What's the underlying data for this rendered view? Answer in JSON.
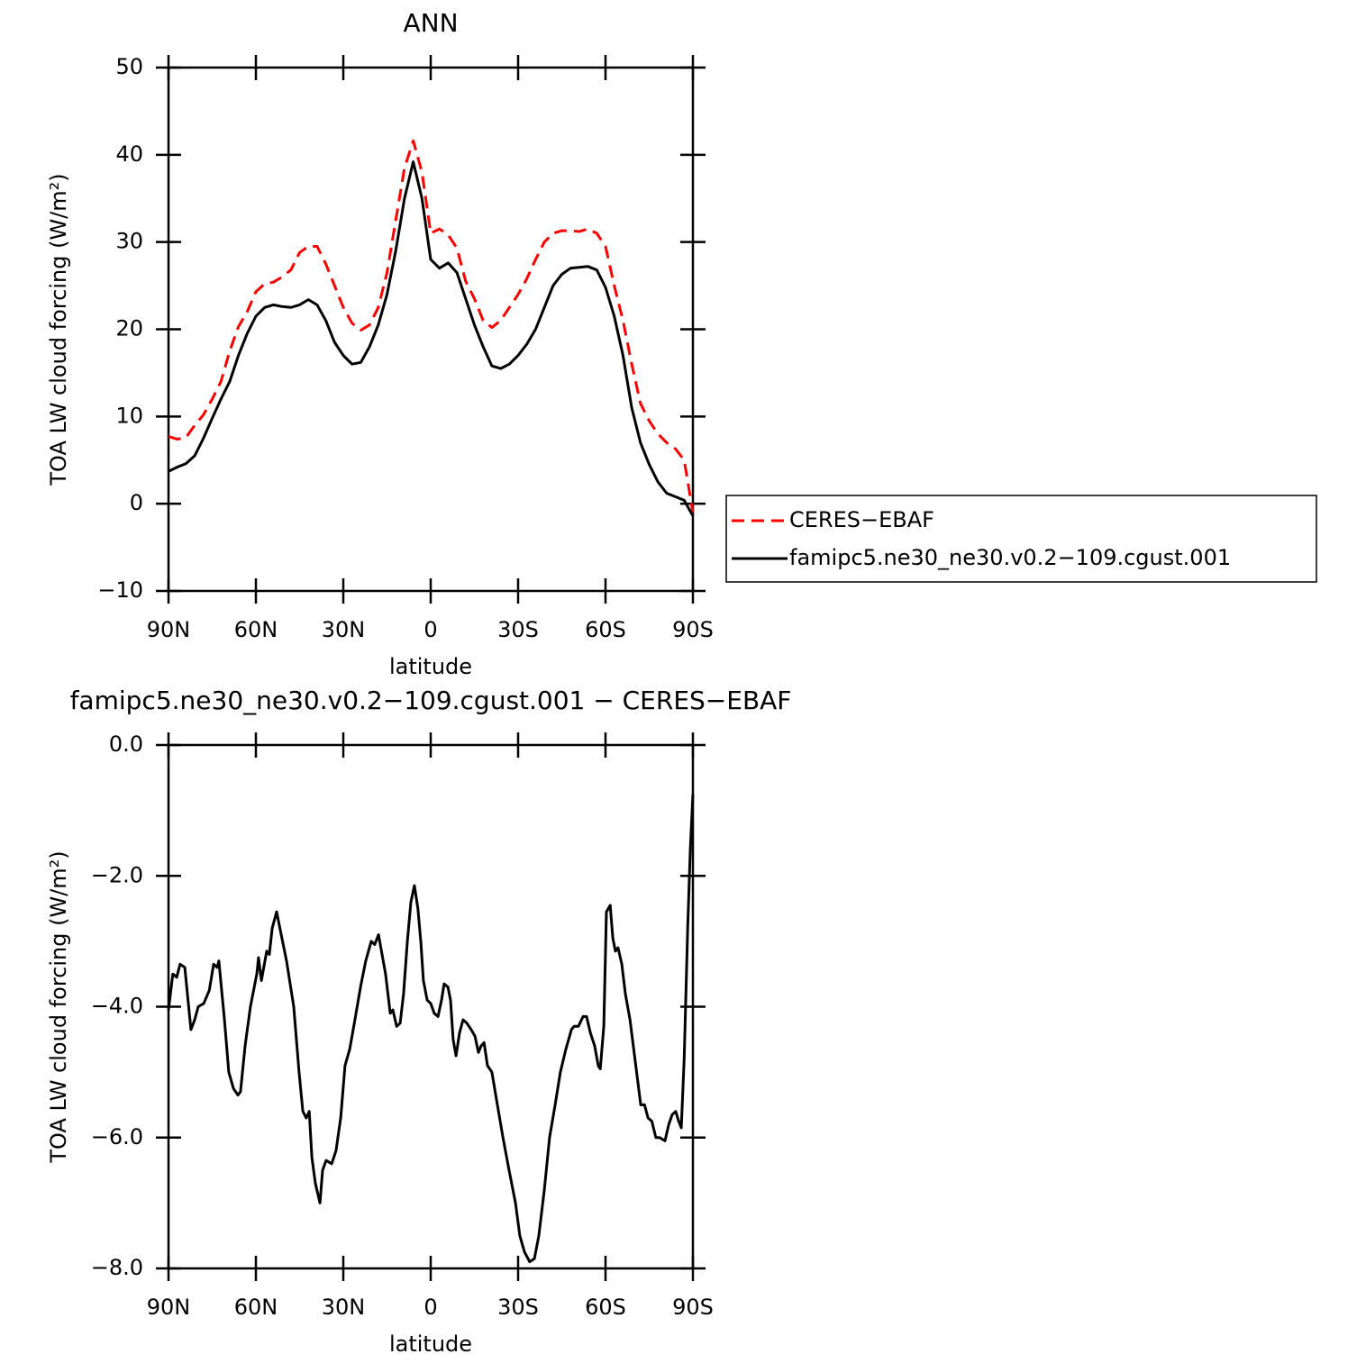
{
  "chart_data": [
    {
      "type": "line",
      "title": "ANN",
      "xlabel": "latitude",
      "ylabel": "TOA LW cloud forcing (W/m²)",
      "x": [
        90,
        87,
        84,
        81,
        78,
        75,
        72,
        69,
        66,
        63,
        60,
        57,
        54,
        51,
        48,
        45,
        42,
        39,
        36,
        33,
        30,
        27,
        24,
        21,
        18,
        15,
        12,
        9,
        6,
        3,
        0,
        -3,
        -6,
        -9,
        -12,
        -15,
        -18,
        -21,
        -24,
        -27,
        -30,
        -33,
        -36,
        -39,
        -42,
        -45,
        -48,
        -51,
        -54,
        -57,
        -60,
        -63,
        -66,
        -69,
        -72,
        -75,
        -78,
        -81,
        -84,
        -87,
        -90
      ],
      "series": [
        {
          "name": "CERES−EBAF",
          "color": "#ff0000",
          "dash": "dashed",
          "values": [
            7.7,
            7.4,
            7.6,
            9.0,
            10.2,
            12.0,
            14.0,
            17.5,
            20.3,
            22.0,
            24.3,
            25.2,
            25.4,
            26.0,
            26.8,
            28.8,
            29.5,
            29.5,
            27.5,
            25.0,
            22.5,
            20.7,
            19.9,
            20.5,
            22.5,
            26.5,
            32.5,
            38.5,
            41.6,
            38.0,
            31.0,
            31.5,
            30.8,
            29.3,
            25.5,
            23.5,
            21.0,
            20.2,
            21.0,
            22.5,
            24.0,
            25.8,
            28.0,
            30.0,
            31.0,
            31.3,
            31.3,
            31.2,
            31.5,
            31.0,
            29.5,
            25.0,
            21.0,
            16.0,
            11.5,
            9.5,
            8.0,
            7.0,
            6.3,
            5.0,
            -1.0
          ]
        },
        {
          "name": "famipc5.ne30_ne30.v0.2−109.cgust.001",
          "color": "#000000",
          "dash": "solid",
          "values": [
            3.7,
            4.2,
            4.6,
            5.5,
            7.5,
            9.8,
            12.0,
            14.0,
            17.0,
            19.5,
            21.5,
            22.5,
            22.8,
            22.6,
            22.5,
            22.8,
            23.4,
            22.8,
            21.0,
            18.5,
            17.0,
            16.0,
            16.2,
            18.0,
            20.5,
            24.0,
            29.0,
            35.0,
            39.2,
            35.0,
            28.0,
            27.0,
            27.6,
            26.5,
            23.5,
            20.5,
            18.0,
            15.8,
            15.5,
            16.0,
            17.0,
            18.3,
            20.0,
            22.5,
            25.0,
            26.3,
            27.0,
            27.1,
            27.2,
            26.8,
            24.8,
            21.5,
            17.0,
            11.0,
            7.0,
            4.5,
            2.5,
            1.2,
            0.8,
            0.4,
            -1.4
          ]
        }
      ],
      "xlim": [
        90,
        -90
      ],
      "xticks": [
        {
          "value": 90,
          "label": "90N"
        },
        {
          "value": 60,
          "label": "60N"
        },
        {
          "value": 30,
          "label": "30N"
        },
        0,
        {
          "value": -30,
          "label": "30S"
        },
        {
          "value": -60,
          "label": "60S"
        },
        {
          "value": -90,
          "label": "90S"
        }
      ],
      "ylim": [
        -10,
        50
      ],
      "yticks": [
        {
          "value": -10,
          "label": "−10"
        },
        0,
        10,
        20,
        30,
        40,
        50
      ],
      "legend": "right"
    },
    {
      "type": "line",
      "title": "famipc5.ne30_ne30.v0.2−109.cgust.001 − CERES−EBAF",
      "xlabel": "latitude",
      "ylabel": "TOA LW cloud forcing (W/m²)",
      "x": [
        90,
        88.5,
        87.2,
        86,
        84.4,
        82.3,
        81,
        79.8,
        77.9,
        76,
        74.5,
        73.3,
        72.7,
        70.8,
        69.3,
        67.7,
        66.2,
        65.3,
        63.7,
        61.9,
        59.7,
        59.1,
        58.1,
        56.3,
        55.4,
        54.4,
        52.9,
        51.3,
        49.5,
        47,
        45.2,
        43.9,
        42.7,
        41.7,
        40.8,
        39.6,
        38,
        37.1,
        35.9,
        34,
        32.5,
        30.9,
        29.4,
        27.8,
        26,
        24.1,
        22.3,
        20.4,
        19.2,
        17.9,
        16.7,
        15.5,
        13.9,
        13,
        11.7,
        10.5,
        9.3,
        8,
        6.8,
        5.6,
        4.4,
        3.4,
        2.5,
        1.2,
        0,
        -1.2,
        -2.5,
        -3.7,
        -4.6,
        -5.9,
        -6.8,
        -7.7,
        -8.7,
        -9.9,
        -11.1,
        -12.4,
        -13.9,
        -15.2,
        -16.4,
        -17.3,
        -18.3,
        -19.5,
        -21,
        -22.9,
        -24.8,
        -26.9,
        -29.1,
        -30.6,
        -32.2,
        -34,
        -35.6,
        -37.1,
        -39,
        -40.8,
        -42.7,
        -44.5,
        -46.4,
        -48.3,
        -49.2,
        -50.7,
        -52.3,
        -53.5,
        -54.8,
        -56.3,
        -57.5,
        -58.2,
        -59.4,
        -60.3,
        -61.6,
        -62.5,
        -63.4,
        -64.3,
        -65.6,
        -66.8,
        -68.4,
        -70.4,
        -72.1,
        -73.4,
        -74.6,
        -75.9,
        -77.3,
        -78.6,
        -80.4,
        -81.7,
        -82.9,
        -84.1,
        -85.1,
        -86,
        -87,
        -88.2,
        -89.1,
        -90
      ],
      "color": "#000000",
      "values": [
        -4.05,
        -3.5,
        -3.55,
        -3.35,
        -3.4,
        -4.35,
        -4.2,
        -4.0,
        -3.95,
        -3.75,
        -3.35,
        -3.4,
        -3.3,
        -4.2,
        -5.0,
        -5.25,
        -5.35,
        -5.3,
        -4.6,
        -4.0,
        -3.5,
        -3.25,
        -3.6,
        -3.15,
        -3.2,
        -2.8,
        -2.55,
        -2.9,
        -3.3,
        -4.0,
        -5.0,
        -5.6,
        -5.7,
        -5.6,
        -6.3,
        -6.7,
        -7.0,
        -6.5,
        -6.35,
        -6.4,
        -6.2,
        -5.7,
        -4.9,
        -4.65,
        -4.2,
        -3.7,
        -3.3,
        -3.0,
        -3.05,
        -2.9,
        -3.2,
        -3.5,
        -4.1,
        -4.05,
        -4.3,
        -4.25,
        -3.8,
        -3.0,
        -2.4,
        -2.15,
        -2.5,
        -3.0,
        -3.6,
        -3.9,
        -3.95,
        -4.1,
        -4.15,
        -3.9,
        -3.65,
        -3.7,
        -3.9,
        -4.5,
        -4.75,
        -4.4,
        -4.2,
        -4.25,
        -4.35,
        -4.45,
        -4.7,
        -4.6,
        -4.55,
        -4.9,
        -5.0,
        -5.5,
        -6.0,
        -6.5,
        -7.0,
        -7.5,
        -7.75,
        -7.9,
        -7.85,
        -7.5,
        -6.8,
        -6.0,
        -5.5,
        -5.0,
        -4.65,
        -4.35,
        -4.3,
        -4.3,
        -4.15,
        -4.15,
        -4.4,
        -4.6,
        -4.9,
        -4.95,
        -4.3,
        -2.55,
        -2.45,
        -2.95,
        -3.15,
        -3.1,
        -3.35,
        -3.8,
        -4.2,
        -4.9,
        -5.5,
        -5.5,
        -5.7,
        -5.75,
        -6.0,
        -6.0,
        -6.05,
        -5.8,
        -5.65,
        -5.6,
        -5.75,
        -5.85,
        -4.8,
        -2.8,
        -1.6,
        -0.75
      ],
      "xlim": [
        90,
        -90
      ],
      "xticks": [
        {
          "value": 90,
          "label": "90N"
        },
        {
          "value": 60,
          "label": "60N"
        },
        {
          "value": 30,
          "label": "30N"
        },
        0,
        {
          "value": -30,
          "label": "30S"
        },
        {
          "value": -60,
          "label": "60S"
        },
        {
          "value": -90,
          "label": "90S"
        }
      ],
      "ylim": [
        -8,
        0
      ],
      "yticks": [
        {
          "value": -8,
          "label": "−8.0"
        },
        {
          "value": -6,
          "label": "−6.0"
        },
        {
          "value": -4,
          "label": "−4.0"
        },
        {
          "value": -2,
          "label": "−2.0"
        },
        {
          "value": 0,
          "label": "0.0"
        }
      ]
    }
  ]
}
